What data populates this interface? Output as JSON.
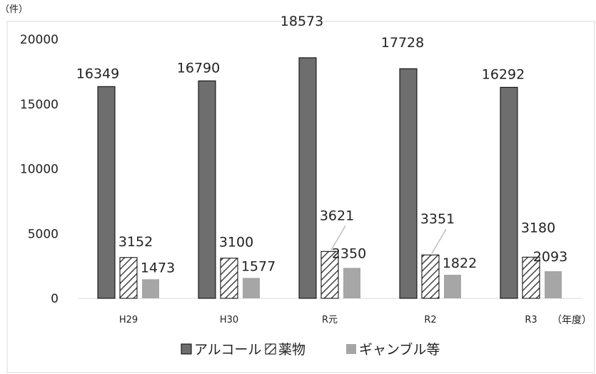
{
  "chart_data": {
    "type": "bar",
    "y_unit": "（件）",
    "x_unit": "（年度）",
    "categories": [
      "H29",
      "H30",
      "R元",
      "R2",
      "R3"
    ],
    "ylim": [
      0,
      20000
    ],
    "yticks": [
      0,
      5000,
      10000,
      15000,
      20000
    ],
    "grid": false,
    "legend_position": "bottom",
    "series": [
      {
        "name": "アルコール",
        "values": [
          16349,
          16790,
          18573,
          17728,
          16292
        ],
        "color": "#6e6e6e",
        "pattern": "solid"
      },
      {
        "name": "薬物",
        "values": [
          3152,
          3100,
          3621,
          3351,
          3180
        ],
        "color": "#ffffff",
        "pattern": "hatch"
      },
      {
        "name": "ギャンブル等",
        "values": [
          1473,
          1577,
          2350,
          1822,
          2093
        ],
        "color": "#a6a6a6",
        "pattern": "solid"
      }
    ]
  }
}
